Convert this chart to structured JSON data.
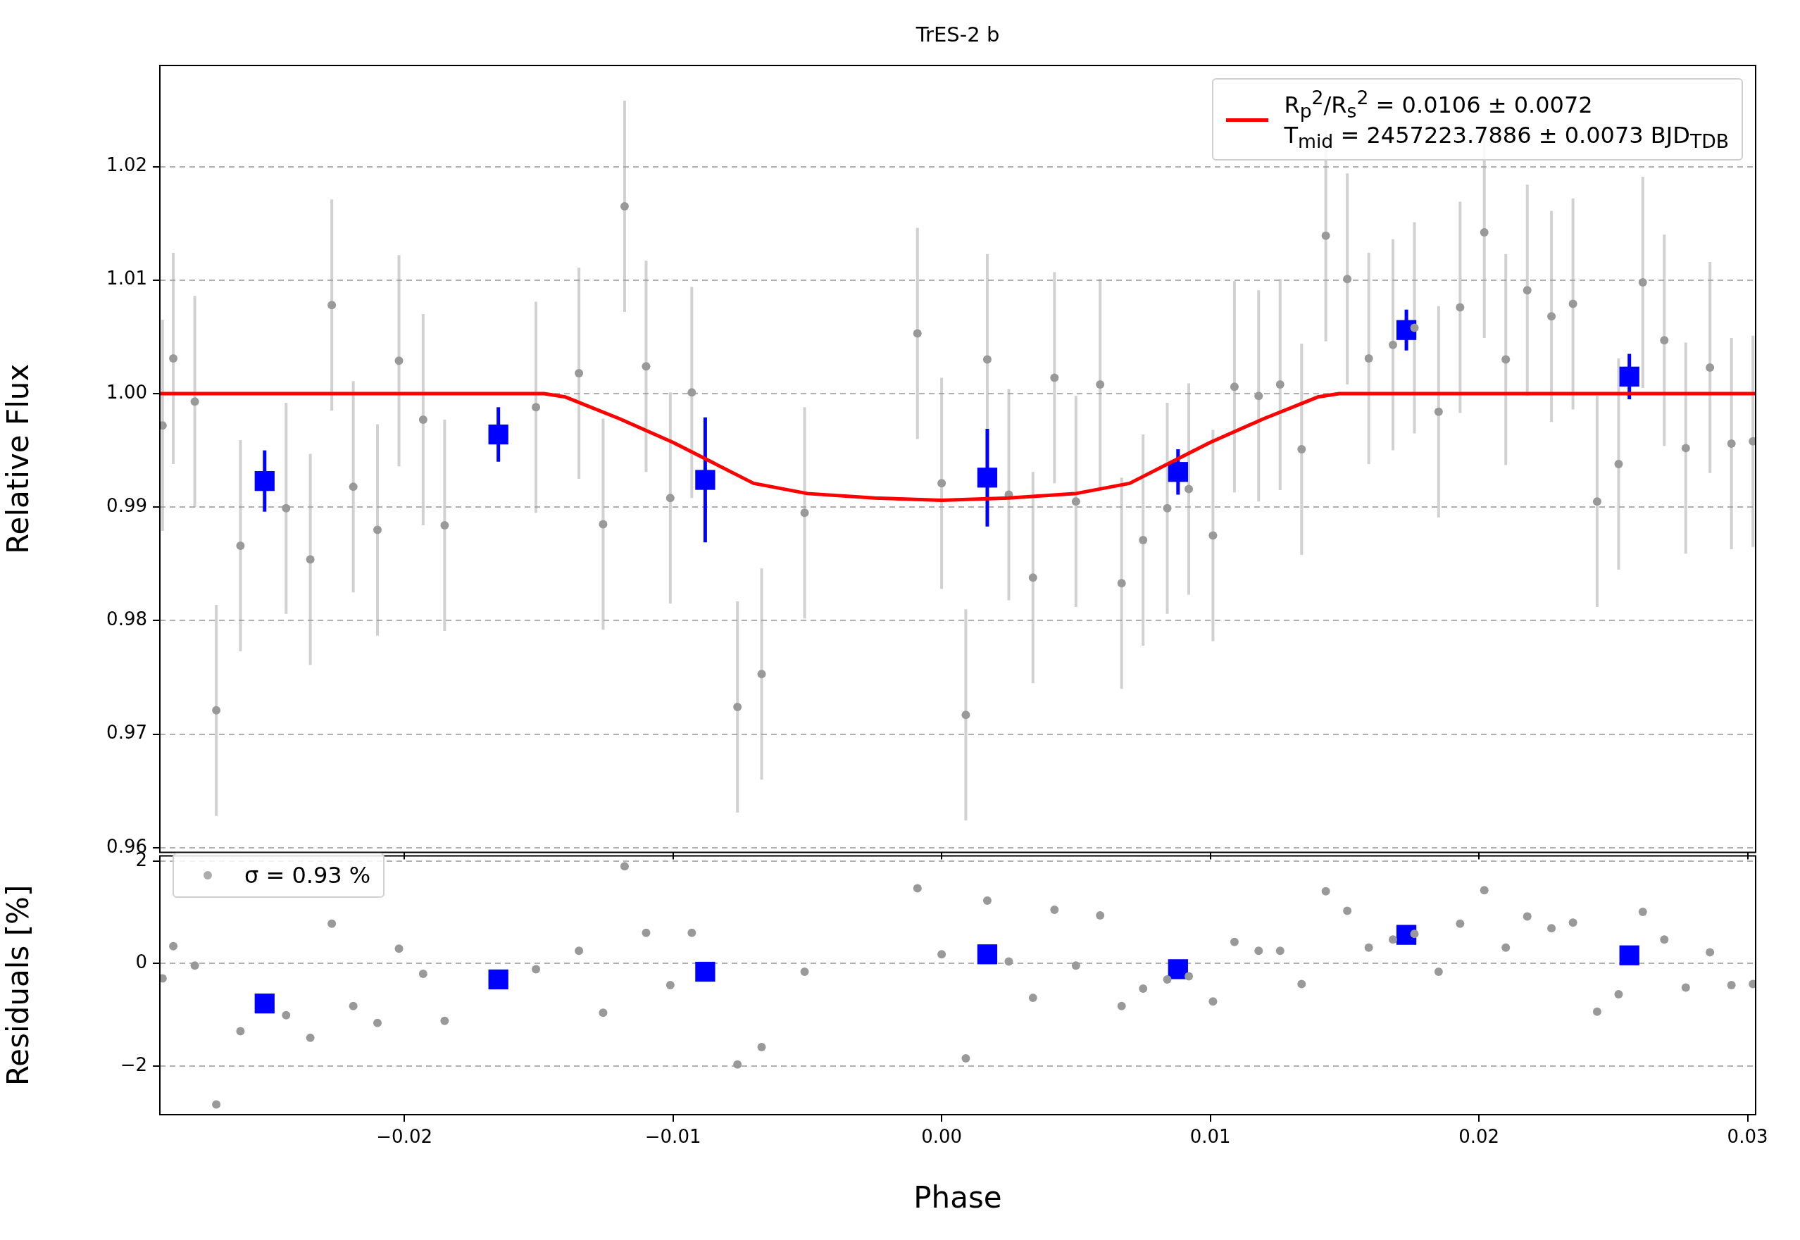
{
  "chart_data": [
    {
      "type": "scatter",
      "title": "TrES-2 b",
      "ylabel": "Relative Flux",
      "xlim": [
        -0.0291,
        0.0303
      ],
      "ylim": [
        0.9596,
        1.0289
      ],
      "xticks": [
        {
          "value": -0.02,
          "label": null
        },
        {
          "value": -0.01,
          "label": null
        },
        {
          "value": 0,
          "label": null
        },
        {
          "value": 0.01,
          "label": null
        },
        {
          "value": 0.02,
          "label": null
        },
        {
          "value": 0.03,
          "label": null
        }
      ],
      "yticks": [
        0.96,
        0.97,
        0.98,
        0.99,
        {
          "value": 1,
          "label": "1.00"
        },
        1.01,
        1.02
      ],
      "grid": "y",
      "legend": "top right",
      "tick_labels": "y",
      "series": [
        {
          "type": "scatter",
          "marker": "circle",
          "color": "#999999",
          "x": [
            -0.029,
            -0.0286,
            -0.0278,
            -0.027,
            -0.0261,
            -0.0244,
            -0.0235,
            -0.0227,
            -0.0219,
            -0.021,
            -0.0202,
            -0.0193,
            -0.0185,
            -0.0151,
            -0.0135,
            -0.0126,
            -0.0118,
            -0.011,
            -0.0101,
            -0.0093,
            -0.0076,
            -0.0067,
            -0.0051,
            -0.0009,
            0.0,
            0.0009,
            0.0017,
            0.0025,
            0.0034,
            0.0042,
            0.005,
            0.0059,
            0.0067,
            0.0075,
            0.0084,
            0.0092,
            0.0101,
            0.0109,
            0.0118,
            0.0126,
            0.0134,
            0.0143,
            0.0151,
            0.0159,
            0.0168,
            0.0176,
            0.0185,
            0.0193,
            0.0202,
            0.021,
            0.0218,
            0.0227,
            0.0235,
            0.0244,
            0.0252,
            0.0261,
            0.0269,
            0.0277,
            0.0286,
            0.0294,
            0.0302
          ],
          "values": [
            0.9972,
            1.0031,
            0.9993,
            0.9721,
            0.9866,
            0.9899,
            0.9854,
            1.0078,
            0.9918,
            0.988,
            1.0029,
            0.9977,
            0.9884,
            0.9988,
            1.0018,
            0.9885,
            1.0165,
            1.0024,
            0.9908,
            1.0001,
            0.9724,
            0.9753,
            0.9895,
            1.0053,
            0.9921,
            0.9717,
            1.003,
            0.9911,
            0.9838,
            1.0014,
            0.9905,
            1.0008,
            0.9833,
            0.9871,
            0.9899,
            0.9916,
            0.9875,
            1.0006,
            0.9998,
            1.0008,
            0.9951,
            1.0139,
            1.0101,
            1.0031,
            1.0043,
            1.0058,
            0.9984,
            1.0076,
            1.0142,
            1.003,
            1.0091,
            1.0068,
            1.0079,
            0.9905,
            0.9938,
            1.0098,
            1.0047,
            0.9952,
            1.0023,
            0.9956,
            0.9958
          ],
          "errors": [
            0.0093,
            0.0093,
            0.0093,
            0.0093,
            0.0093,
            0.0093,
            0.0093,
            0.0093,
            0.0093,
            0.0093,
            0.0093,
            0.0093,
            0.0093,
            0.0093,
            0.0093,
            0.0093,
            0.0093,
            0.0093,
            0.0093,
            0.0093,
            0.0093,
            0.0093,
            0.0093,
            0.0093,
            0.0093,
            0.0093,
            0.0093,
            0.0093,
            0.0093,
            0.0093,
            0.0093,
            0.0093,
            0.0093,
            0.0093,
            0.0093,
            0.0093,
            0.0093,
            0.0093,
            0.0093,
            0.0093,
            0.0093,
            0.0093,
            0.0093,
            0.0093,
            0.0093,
            0.0093,
            0.0093,
            0.0093,
            0.0093,
            0.0093,
            0.0093,
            0.0093,
            0.0093,
            0.0093,
            0.0093,
            0.0093,
            0.0093,
            0.0093,
            0.0093,
            0.0093,
            0.0093
          ]
        },
        {
          "type": "scatter",
          "marker": "square",
          "color": "#0000ff",
          "x": [
            -0.0252,
            -0.0165,
            -0.0088,
            0.0017,
            0.0088,
            0.0173,
            0.0256
          ],
          "values": [
            0.9923,
            0.9964,
            0.9924,
            0.9926,
            0.9931,
            1.0056,
            1.0015
          ],
          "errors": [
            0.0027,
            0.0024,
            0.0055,
            0.0043,
            0.002,
            0.0018,
            0.002
          ]
        },
        {
          "type": "line",
          "marker": "none",
          "line_style": "solid",
          "color": "#ff0000",
          "name": "R$_{p}$$^{2}$/R$_{s}$$^{2}$ = 0.0106 ± 0.0072\nT$_{mid}$ = 2457223.7886 ± 0.0073 BJD$_{TDB}$",
          "x": [
            -0.0291,
            -0.0148,
            -0.014,
            -0.012,
            -0.01,
            -0.0085,
            -0.007,
            -0.005,
            -0.0025,
            0,
            0.0025,
            0.005,
            0.007,
            0.0085,
            0.01,
            0.012,
            0.014,
            0.0148,
            0.0303
          ],
          "values": [
            1,
            1,
            0.9997,
            0.9978,
            0.9957,
            0.9939,
            0.9921,
            0.9912,
            0.9908,
            0.9906,
            0.9908,
            0.9912,
            0.9921,
            0.9939,
            0.9957,
            0.9978,
            0.9997,
            1,
            1
          ]
        }
      ]
    },
    {
      "type": "scatter",
      "xlabel": "Phase",
      "ylabel": "Residuals [%]",
      "xlim": [
        -0.0291,
        0.0303
      ],
      "ylim": [
        -2.95,
        2.1
      ],
      "xticks": [
        {
          "value": -0.02,
          "label": "−0.02"
        },
        {
          "value": -0.01,
          "label": "−0.01"
        },
        {
          "value": 0,
          "label": "0.00"
        },
        0.01,
        0.02,
        0.03
      ],
      "yticks": [
        {
          "value": -2,
          "label": "−2"
        },
        0,
        2
      ],
      "grid": "y",
      "legend": "top left",
      "series": [
        {
          "type": "scatter",
          "marker": "circle",
          "color": "#999999",
          "name": "σ = 0.93 %",
          "x": [
            -0.029,
            -0.0286,
            -0.0278,
            -0.027,
            -0.0261,
            -0.0244,
            -0.0235,
            -0.0227,
            -0.0219,
            -0.021,
            -0.0202,
            -0.0193,
            -0.0185,
            -0.0151,
            -0.0135,
            -0.0126,
            -0.0118,
            -0.011,
            -0.0101,
            -0.0093,
            -0.0076,
            -0.0067,
            -0.0051,
            -0.0009,
            0.0,
            0.0009,
            0.0017,
            0.0025,
            0.0034,
            0.0042,
            0.005,
            0.0059,
            0.0067,
            0.0075,
            0.0084,
            0.0092,
            0.0101,
            0.0109,
            0.0118,
            0.0126,
            0.0134,
            0.0143,
            0.0151,
            0.0159,
            0.0168,
            0.0176,
            0.0185,
            0.0193,
            0.0202,
            0.021,
            0.0218,
            0.0227,
            0.0235,
            0.0244,
            0.0252,
            0.0261,
            0.0269,
            0.0277,
            0.0286,
            0.0294,
            0.0302
          ],
          "values": [
            -0.29,
            0.34,
            -0.04,
            -2.75,
            -1.32,
            -1.01,
            -1.45,
            0.78,
            -0.83,
            -1.16,
            0.29,
            -0.2,
            -1.12,
            -0.11,
            0.25,
            -0.96,
            1.9,
            0.6,
            -0.42,
            0.6,
            -1.97,
            -1.63,
            -0.16,
            1.47,
            0.18,
            -1.85,
            1.23,
            0.04,
            -0.67,
            1.05,
            -0.04,
            0.94,
            -0.83,
            -0.49,
            -0.31,
            -0.25,
            -0.74,
            0.42,
            0.25,
            0.25,
            -0.4,
            1.41,
            1.03,
            0.31,
            0.47,
            0.58,
            -0.16,
            0.78,
            1.43,
            0.31,
            0.92,
            0.69,
            0.8,
            -0.94,
            -0.6,
            1.01,
            0.47,
            -0.47,
            0.22,
            -0.42,
            -0.4
          ]
        },
        {
          "type": "scatter",
          "marker": "square",
          "color": "#0000ff",
          "x": [
            -0.0252,
            -0.0165,
            -0.0088,
            0.0017,
            0.0088,
            0.0173,
            0.0256
          ],
          "values": [
            -0.78,
            -0.31,
            -0.16,
            0.18,
            -0.11,
            0.56,
            0.16
          ]
        }
      ]
    }
  ]
}
